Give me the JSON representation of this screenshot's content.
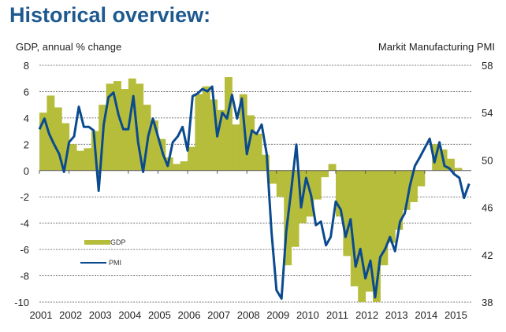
{
  "title": "Historical overview:",
  "chart_data": {
    "type": "bar+line",
    "title": "Historical overview:",
    "ylabel_left": "GDP, annual % change",
    "ylabel_right": "Markit Manufacturing PMI",
    "xlabel": "",
    "x_ticks": [
      "2001",
      "2002",
      "2003",
      "2004",
      "2005",
      "2006",
      "2007",
      "2008",
      "2009",
      "2010",
      "2011",
      "2012",
      "2013",
      "2014",
      "2015"
    ],
    "y_left_ticks": [
      "8",
      "6",
      "4",
      "2",
      "0",
      "-2",
      "-4",
      "-6",
      "-8",
      "-10"
    ],
    "y_right_ticks": [
      "58",
      "54",
      "50",
      "46",
      "42",
      "38"
    ],
    "ylim_left": [
      -10,
      8
    ],
    "ylim_right": [
      38,
      58
    ],
    "xlim": [
      2001,
      2015.55
    ],
    "grid": "horizontal dashed",
    "legend": {
      "placement": "lower-left",
      "entries": [
        {
          "name": "GDP",
          "type": "bar",
          "color": "#b5bd3a"
        },
        {
          "name": "PMI",
          "type": "line",
          "color": "#0b4a8f"
        }
      ]
    },
    "series": [
      {
        "name": "GDP",
        "axis": "left",
        "type": "bar",
        "color": "#b5bd3a",
        "x": [
          2001.0,
          2001.25,
          2001.5,
          2001.75,
          2002.0,
          2002.25,
          2002.5,
          2002.75,
          2003.0,
          2003.25,
          2003.5,
          2003.75,
          2004.0,
          2004.25,
          2004.5,
          2004.75,
          2005.0,
          2005.25,
          2005.5,
          2005.75,
          2006.0,
          2006.25,
          2006.5,
          2006.75,
          2007.0,
          2007.25,
          2007.5,
          2007.75,
          2008.0,
          2008.25,
          2008.5,
          2008.75,
          2009.0,
          2009.25,
          2009.5,
          2009.75,
          2010.0,
          2010.25,
          2010.5,
          2010.75,
          2011.0,
          2011.25,
          2011.5,
          2011.75,
          2012.0,
          2012.25,
          2012.5,
          2012.75,
          2013.0,
          2013.25,
          2013.5,
          2013.75,
          2014.0,
          2014.25,
          2014.5,
          2014.75,
          2015.0
        ],
        "values": [
          4.4,
          5.7,
          4.8,
          3.6,
          2.0,
          1.5,
          1.7,
          3.0,
          5.0,
          6.6,
          6.8,
          6.2,
          7.0,
          6.6,
          5.0,
          3.8,
          2.4,
          1.0,
          0.5,
          0.7,
          1.8,
          5.8,
          6.4,
          5.4,
          4.6,
          7.1,
          3.5,
          5.8,
          4.2,
          2.8,
          1.2,
          -1.0,
          -2.0,
          -7.2,
          -5.8,
          -4.0,
          -3.5,
          -2.2,
          -0.5,
          0.5,
          -3.5,
          -6.5,
          -8.8,
          -10.0,
          -9.2,
          -10.0,
          -7.2,
          -5.5,
          -4.5,
          -3.0,
          -2.4,
          -1.2,
          0.0,
          2.0,
          1.6,
          0.9,
          0.2
        ]
      },
      {
        "name": "PMI",
        "axis": "right",
        "type": "line",
        "color": "#0b4a8f",
        "x": [
          2001.0,
          2001.17,
          2001.33,
          2001.5,
          2001.67,
          2001.83,
          2002.0,
          2002.17,
          2002.33,
          2002.5,
          2002.67,
          2002.83,
          2003.0,
          2003.17,
          2003.33,
          2003.5,
          2003.67,
          2003.83,
          2004.0,
          2004.17,
          2004.33,
          2004.5,
          2004.67,
          2004.83,
          2005.0,
          2005.17,
          2005.33,
          2005.5,
          2005.67,
          2005.83,
          2006.0,
          2006.17,
          2006.33,
          2006.5,
          2006.67,
          2006.83,
          2007.0,
          2007.17,
          2007.33,
          2007.5,
          2007.67,
          2007.83,
          2008.0,
          2008.17,
          2008.33,
          2008.5,
          2008.67,
          2008.83,
          2009.0,
          2009.17,
          2009.33,
          2009.5,
          2009.67,
          2009.83,
          2010.0,
          2010.17,
          2010.33,
          2010.5,
          2010.67,
          2010.83,
          2011.0,
          2011.17,
          2011.33,
          2011.5,
          2011.67,
          2011.83,
          2012.0,
          2012.17,
          2012.33,
          2012.5,
          2012.67,
          2012.83,
          2013.0,
          2013.17,
          2013.33,
          2013.5,
          2013.67,
          2013.83,
          2014.0,
          2014.17,
          2014.33,
          2014.5,
          2014.67,
          2014.83,
          2015.0,
          2015.17,
          2015.33,
          2015.5
        ],
        "values": [
          52.6,
          53.5,
          52.2,
          51.3,
          50.5,
          49.0,
          51.5,
          52.0,
          54.5,
          52.8,
          52.8,
          52.5,
          47.4,
          53.0,
          55.3,
          55.7,
          53.8,
          52.6,
          52.6,
          55.4,
          51.5,
          49.0,
          52.0,
          53.5,
          52.0,
          50.5,
          49.5,
          51.5,
          52.0,
          52.8,
          50.8,
          55.4,
          55.6,
          56.0,
          55.8,
          56.2,
          52.0,
          54.0,
          53.5,
          55.5,
          53.5,
          55.2,
          50.5,
          52.5,
          52.2,
          53.0,
          50.5,
          44.0,
          39.0,
          38.3,
          44.0,
          47.5,
          51.3,
          46.0,
          48.5,
          47.0,
          44.5,
          44.8,
          42.8,
          43.5,
          46.5,
          45.8,
          43.5,
          45.0,
          41.0,
          42.5,
          40.0,
          41.5,
          38.4,
          41.8,
          42.5,
          43.5,
          42.3,
          44.8,
          45.5,
          47.8,
          49.5,
          50.2,
          51.0,
          51.8,
          49.8,
          51.5,
          49.5,
          49.3,
          48.8,
          48.5,
          46.8,
          48.0
        ]
      }
    ]
  }
}
